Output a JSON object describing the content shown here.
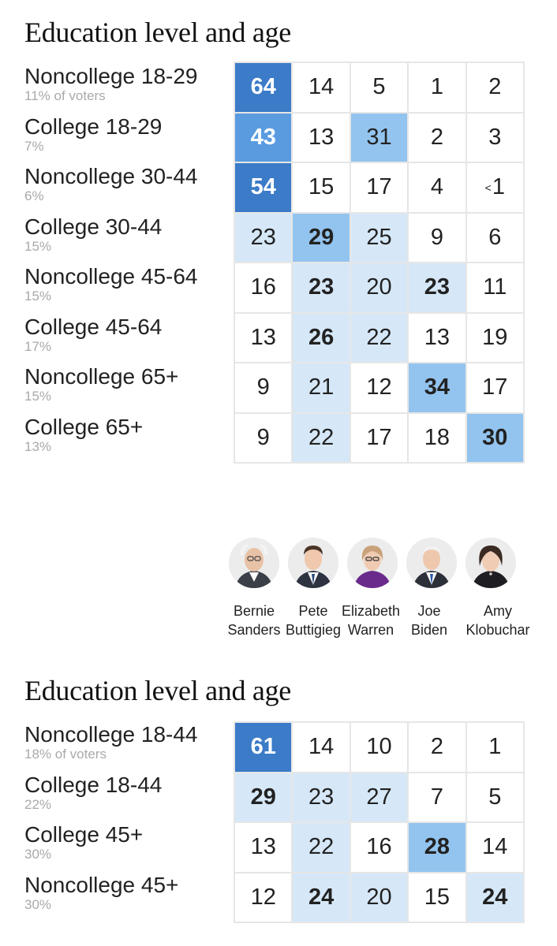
{
  "tables": [
    {
      "title": "Education level and age",
      "rows": [
        {
          "label": "Noncollege 18-29",
          "share": "11% of voters",
          "values": [
            "64",
            "14",
            "5",
            "1",
            "2"
          ]
        },
        {
          "label": "College 18-29",
          "share": "7%",
          "values": [
            "43",
            "13",
            "31",
            "2",
            "3"
          ]
        },
        {
          "label": "Noncollege 30-44",
          "share": "6%",
          "values": [
            "54",
            "15",
            "17",
            "4",
            "<1"
          ]
        },
        {
          "label": "College 30-44",
          "share": "15%",
          "values": [
            "23",
            "29",
            "25",
            "9",
            "6"
          ]
        },
        {
          "label": "Noncollege 45-64",
          "share": "15%",
          "values": [
            "16",
            "23",
            "20",
            "23",
            "11"
          ]
        },
        {
          "label": "College 45-64",
          "share": "17%",
          "values": [
            "13",
            "26",
            "22",
            "13",
            "19"
          ]
        },
        {
          "label": "Noncollege 65+",
          "share": "15%",
          "values": [
            "9",
            "21",
            "12",
            "34",
            "17"
          ]
        },
        {
          "label": "College 65+",
          "share": "13%",
          "values": [
            "9",
            "22",
            "17",
            "18",
            "30"
          ]
        }
      ]
    },
    {
      "title": "Education level and age",
      "rows": [
        {
          "label": "Noncollege 18-44",
          "share": "18% of voters",
          "values": [
            "61",
            "14",
            "10",
            "2",
            "1"
          ]
        },
        {
          "label": "College 18-44",
          "share": "22%",
          "values": [
            "29",
            "23",
            "27",
            "7",
            "5"
          ]
        },
        {
          "label": "College 45+",
          "share": "30%",
          "values": [
            "13",
            "22",
            "16",
            "28",
            "14"
          ]
        },
        {
          "label": "Noncollege 45+",
          "share": "30%",
          "values": [
            "12",
            "24",
            "20",
            "15",
            "24"
          ]
        }
      ]
    }
  ],
  "candidates": [
    {
      "first": "Bernie",
      "last": "Sanders",
      "icon": "bernie-sanders-portrait-icon"
    },
    {
      "first": "Pete",
      "last": "Buttigieg",
      "icon": "pete-buttigieg-portrait-icon"
    },
    {
      "first": "Elizabeth",
      "last": "Warren",
      "icon": "elizabeth-warren-portrait-icon"
    },
    {
      "first": "Joe",
      "last": "Biden",
      "icon": "joe-biden-portrait-icon"
    },
    {
      "first": "Amy",
      "last": "Klobuchar",
      "icon": "amy-klobuchar-portrait-icon"
    }
  ],
  "colors": {
    "shade_max": "#3b7bc8",
    "shade_high": "#5a9be0",
    "shade_mid": "#93c4ef",
    "shade_low": "#d6e8f8",
    "grid": "#e6e6e6"
  },
  "chart_data": [
    {
      "type": "table",
      "title": "Education level and age",
      "columns": [
        "Bernie Sanders",
        "Pete Buttigieg",
        "Elizabeth Warren",
        "Joe Biden",
        "Amy Klobuchar"
      ],
      "rows": [
        "Noncollege 18-29",
        "College 18-29",
        "Noncollege 30-44",
        "College 30-44",
        "Noncollege 45-64",
        "College 45-64",
        "Noncollege 65+",
        "College 65+"
      ],
      "row_shares": [
        "11% of voters",
        "7%",
        "6%",
        "15%",
        "15%",
        "17%",
        "15%",
        "13%"
      ],
      "values": [
        [
          64,
          14,
          5,
          1,
          2
        ],
        [
          43,
          13,
          31,
          2,
          3
        ],
        [
          54,
          15,
          17,
          4,
          "<1"
        ],
        [
          23,
          29,
          25,
          9,
          6
        ],
        [
          16,
          23,
          20,
          23,
          11
        ],
        [
          13,
          26,
          22,
          13,
          19
        ],
        [
          9,
          21,
          12,
          34,
          17
        ],
        [
          9,
          22,
          17,
          18,
          30
        ]
      ]
    },
    {
      "type": "table",
      "title": "Education level and age",
      "columns": [
        "Bernie Sanders",
        "Pete Buttigieg",
        "Elizabeth Warren",
        "Joe Biden",
        "Amy Klobuchar"
      ],
      "rows": [
        "Noncollege 18-44",
        "College 18-44",
        "College 45+",
        "Noncollege 45+"
      ],
      "row_shares": [
        "18% of voters",
        "22%",
        "30%",
        "30%"
      ],
      "values": [
        [
          61,
          14,
          10,
          2,
          1
        ],
        [
          29,
          23,
          27,
          7,
          5
        ],
        [
          13,
          22,
          16,
          28,
          14
        ],
        [
          12,
          24,
          20,
          15,
          24
        ]
      ]
    }
  ]
}
